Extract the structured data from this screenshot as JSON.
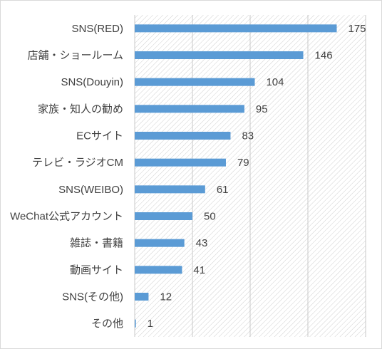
{
  "chart_data": {
    "type": "bar",
    "orientation": "horizontal",
    "categories": [
      "SNS(RED)",
      "店舗・ショールーム",
      "SNS(Douyin)",
      "家族・知人の勧め",
      "ECサイト",
      "テレビ・ラジオCM",
      "SNS(WEIBO)",
      "WeChat公式アカウント",
      "雑誌・書籍",
      "動画サイト",
      "SNS(その他)",
      "その他"
    ],
    "values": [
      175,
      146,
      104,
      95,
      83,
      79,
      61,
      50,
      43,
      41,
      12,
      1
    ],
    "xlim": [
      0,
      200
    ],
    "grid": true,
    "legend": "none",
    "colors": {
      "bar": "#5b9bd5",
      "hatch_bg": "#ffffff",
      "hatch_line": "#d0d0d0",
      "grid": "#c8c8c8",
      "text": "#404040"
    }
  }
}
